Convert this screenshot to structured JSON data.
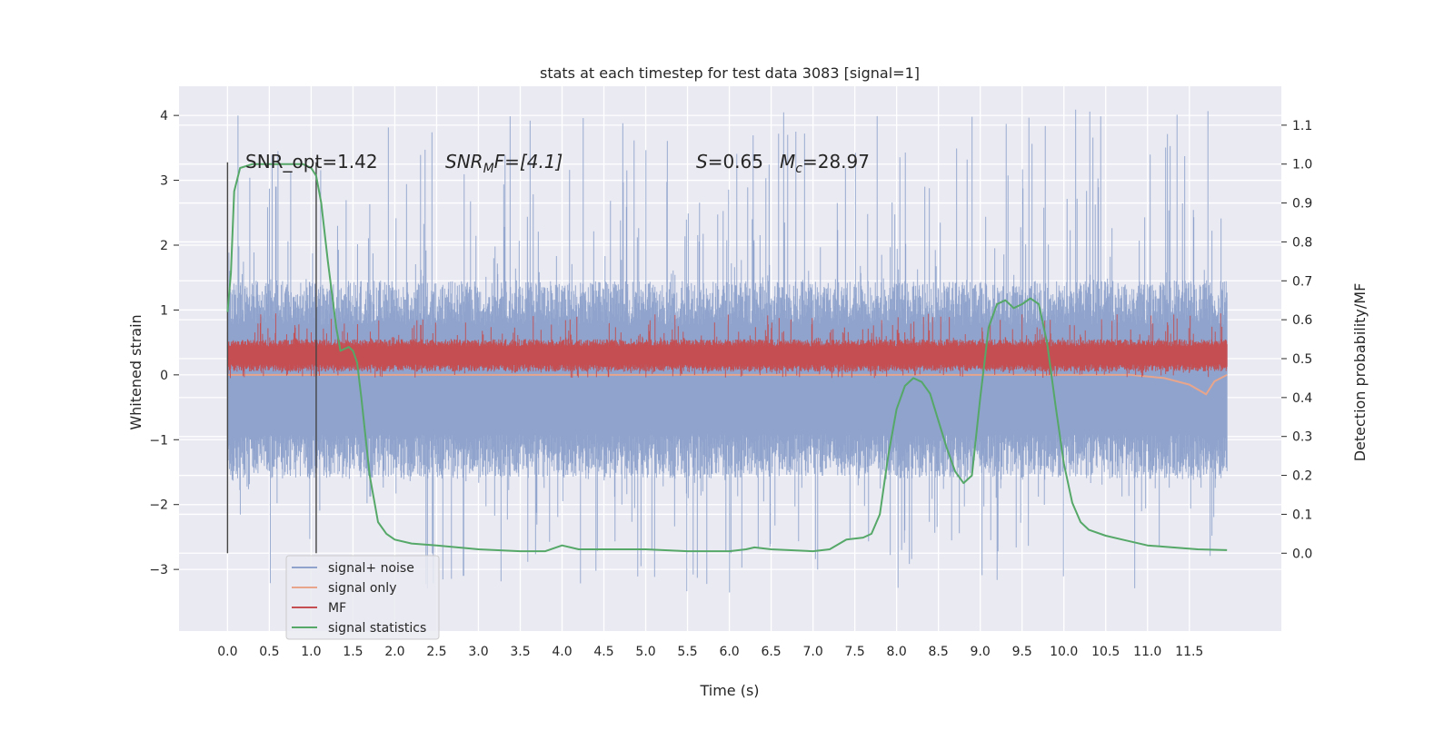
{
  "chart_data": {
    "type": "line",
    "title": "stats at each timestep for test data 3083 [signal=1]",
    "xlabel": "Time (s)",
    "ylabel_left": "Whitened strain",
    "ylabel_right": "Detection probability/MF",
    "xlim": [
      -0.58,
      12.6
    ],
    "ylim_left": [
      -3.95,
      4.45
    ],
    "ylim_right": [
      -0.2,
      1.2
    ],
    "grid": true,
    "x_ticks": [
      "0.0",
      "0.5",
      "1.0",
      "1.5",
      "2.0",
      "2.5",
      "3.0",
      "3.5",
      "4.0",
      "4.5",
      "5.0",
      "5.5",
      "6.0",
      "6.5",
      "7.0",
      "7.5",
      "8.0",
      "8.5",
      "9.0",
      "9.5",
      "10.0",
      "10.5",
      "11.0",
      "11.5"
    ],
    "y_ticks_left": [
      "−3",
      "−2",
      "−1",
      "0",
      "1",
      "2",
      "3",
      "4"
    ],
    "y_ticks_right": [
      "0.0",
      "0.1",
      "0.2",
      "0.3",
      "0.4",
      "0.5",
      "0.6",
      "0.7",
      "0.8",
      "0.9",
      "1.0",
      "1.1"
    ],
    "annotations": {
      "snr_opt": "SNR_opt=1.42",
      "snr_mf_name": "SNR",
      "snr_mf_sub": "M",
      "snr_mf_rest": "F=[4.1]",
      "s_name": "S",
      "s_value": "=0.65",
      "mc_name": "M",
      "mc_sub": "c",
      "mc_value": "=28.97"
    },
    "vertical_markers_s": [
      0.0,
      1.06
    ],
    "legend_placement": "lower-left",
    "series": [
      {
        "name": "signal+ noise",
        "axis": "left",
        "color": "#8fa3cc",
        "style": "noisy band",
        "t_range": [
          0.0,
          11.95
        ],
        "typical_range": [
          -1.6,
          1.45
        ],
        "extremes_range": [
          -3.4,
          4.1
        ]
      },
      {
        "name": "signal only",
        "axis": "left",
        "color": "#e8a58c",
        "points": [
          [
            0.0,
            0.0
          ],
          [
            10.8,
            0.0
          ],
          [
            11.2,
            -0.05
          ],
          [
            11.5,
            -0.15
          ],
          [
            11.7,
            -0.3
          ],
          [
            11.8,
            -0.1
          ],
          [
            11.95,
            0.0
          ]
        ]
      },
      {
        "name": "MF",
        "axis": "left",
        "color": "#c44e52",
        "style": "noisy band",
        "t_range": [
          0.0,
          11.95
        ],
        "typical_range": [
          0.05,
          0.55
        ],
        "extremes_range": [
          -0.05,
          0.95
        ]
      },
      {
        "name": "signal statistics",
        "axis": "right",
        "color": "#55a868",
        "points": [
          [
            0.0,
            0.62
          ],
          [
            0.04,
            0.72
          ],
          [
            0.08,
            0.93
          ],
          [
            0.15,
            0.99
          ],
          [
            0.3,
            1.0
          ],
          [
            0.9,
            1.0
          ],
          [
            1.0,
            0.99
          ],
          [
            1.06,
            0.97
          ],
          [
            1.12,
            0.9
          ],
          [
            1.2,
            0.75
          ],
          [
            1.3,
            0.58
          ],
          [
            1.35,
            0.52
          ],
          [
            1.45,
            0.53
          ],
          [
            1.5,
            0.52
          ],
          [
            1.55,
            0.49
          ],
          [
            1.6,
            0.4
          ],
          [
            1.7,
            0.2
          ],
          [
            1.8,
            0.08
          ],
          [
            1.9,
            0.05
          ],
          [
            2.0,
            0.035
          ],
          [
            2.2,
            0.025
          ],
          [
            2.5,
            0.02
          ],
          [
            3.0,
            0.01
          ],
          [
            3.5,
            0.005
          ],
          [
            3.8,
            0.005
          ],
          [
            4.0,
            0.02
          ],
          [
            4.2,
            0.01
          ],
          [
            4.5,
            0.01
          ],
          [
            5.0,
            0.01
          ],
          [
            5.5,
            0.005
          ],
          [
            6.0,
            0.005
          ],
          [
            6.2,
            0.01
          ],
          [
            6.3,
            0.015
          ],
          [
            6.5,
            0.01
          ],
          [
            7.0,
            0.005
          ],
          [
            7.2,
            0.01
          ],
          [
            7.4,
            0.035
          ],
          [
            7.6,
            0.04
          ],
          [
            7.7,
            0.05
          ],
          [
            7.8,
            0.1
          ],
          [
            7.9,
            0.25
          ],
          [
            8.0,
            0.37
          ],
          [
            8.1,
            0.43
          ],
          [
            8.2,
            0.45
          ],
          [
            8.3,
            0.44
          ],
          [
            8.4,
            0.41
          ],
          [
            8.5,
            0.34
          ],
          [
            8.6,
            0.27
          ],
          [
            8.7,
            0.21
          ],
          [
            8.8,
            0.18
          ],
          [
            8.9,
            0.2
          ],
          [
            9.0,
            0.4
          ],
          [
            9.1,
            0.58
          ],
          [
            9.2,
            0.64
          ],
          [
            9.3,
            0.65
          ],
          [
            9.4,
            0.63
          ],
          [
            9.5,
            0.64
          ],
          [
            9.6,
            0.655
          ],
          [
            9.7,
            0.64
          ],
          [
            9.8,
            0.54
          ],
          [
            9.9,
            0.38
          ],
          [
            10.0,
            0.23
          ],
          [
            10.1,
            0.13
          ],
          [
            10.2,
            0.08
          ],
          [
            10.3,
            0.06
          ],
          [
            10.5,
            0.045
          ],
          [
            10.7,
            0.035
          ],
          [
            11.0,
            0.02
          ],
          [
            11.3,
            0.015
          ],
          [
            11.6,
            0.01
          ],
          [
            11.95,
            0.008
          ]
        ]
      }
    ]
  }
}
